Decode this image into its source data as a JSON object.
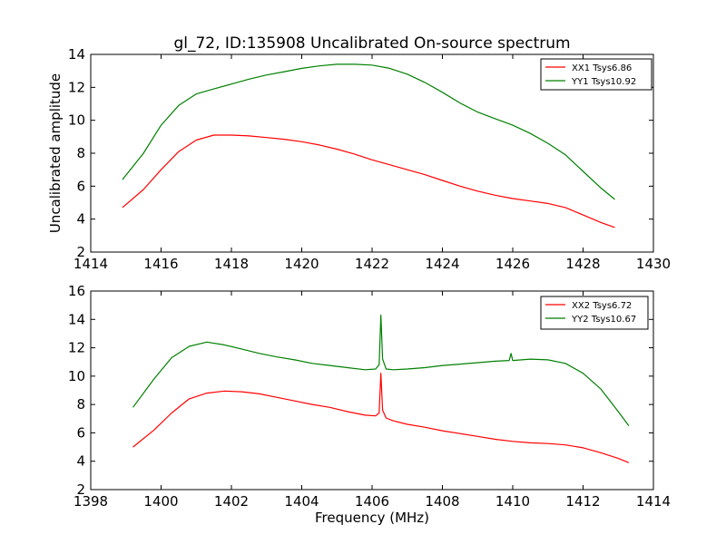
{
  "figure": {
    "title": "gl_72, ID:135908 Uncalibrated On-source spectrum",
    "ylabel": "Uncalibrated amplitude",
    "xlabel": "Frequency (MHz)"
  },
  "chart_data": [
    {
      "type": "line",
      "title": "gl_72, ID:135908 Uncalibrated On-source spectrum",
      "xlabel": "",
      "ylabel": "Uncalibrated amplitude",
      "xlim": [
        1414,
        1430
      ],
      "ylim": [
        2,
        14
      ],
      "xticks": [
        1414,
        1416,
        1418,
        1420,
        1422,
        1424,
        1426,
        1428,
        1430
      ],
      "yticks": [
        2,
        4,
        6,
        8,
        10,
        12,
        14
      ],
      "legend_position": "top-right",
      "grid": false,
      "series": [
        {
          "name": "XX1 Tsys6.86",
          "color": "#ff0000",
          "x": [
            1414.9,
            1415.5,
            1416.0,
            1416.5,
            1417.0,
            1417.5,
            1418.0,
            1418.5,
            1419.0,
            1419.5,
            1420.0,
            1420.5,
            1421.0,
            1421.5,
            1422.0,
            1422.5,
            1423.0,
            1423.5,
            1424.0,
            1424.5,
            1425.0,
            1425.5,
            1426.0,
            1426.5,
            1427.0,
            1427.5,
            1428.0,
            1428.5,
            1428.9
          ],
          "y": [
            4.7,
            5.8,
            7.0,
            8.1,
            8.8,
            9.1,
            9.1,
            9.05,
            8.95,
            8.85,
            8.7,
            8.5,
            8.25,
            7.95,
            7.6,
            7.3,
            7.0,
            6.7,
            6.35,
            6.0,
            5.7,
            5.45,
            5.25,
            5.1,
            4.95,
            4.7,
            4.25,
            3.8,
            3.5
          ]
        },
        {
          "name": "YY1 Tsys10.92",
          "color": "#008000",
          "x": [
            1414.9,
            1415.5,
            1416.0,
            1416.5,
            1417.0,
            1417.5,
            1418.0,
            1418.5,
            1419.0,
            1419.5,
            1420.0,
            1420.5,
            1421.0,
            1421.5,
            1422.0,
            1422.5,
            1423.0,
            1423.5,
            1424.0,
            1424.5,
            1425.0,
            1425.5,
            1426.0,
            1426.5,
            1427.0,
            1427.5,
            1428.0,
            1428.5,
            1428.9
          ],
          "y": [
            6.4,
            8.0,
            9.7,
            10.9,
            11.6,
            11.9,
            12.2,
            12.5,
            12.75,
            12.95,
            13.15,
            13.3,
            13.4,
            13.4,
            13.35,
            13.15,
            12.8,
            12.3,
            11.7,
            11.05,
            10.5,
            10.1,
            9.7,
            9.2,
            8.6,
            7.9,
            6.9,
            5.9,
            5.2
          ]
        }
      ]
    },
    {
      "type": "line",
      "title": "",
      "xlabel": "Frequency (MHz)",
      "ylabel": "",
      "xlim": [
        1398,
        1414
      ],
      "ylim": [
        2,
        16
      ],
      "xticks": [
        1398,
        1400,
        1402,
        1404,
        1406,
        1408,
        1410,
        1412,
        1414
      ],
      "yticks": [
        2,
        4,
        6,
        8,
        10,
        12,
        14,
        16
      ],
      "legend_position": "top-right",
      "grid": false,
      "series": [
        {
          "name": "XX2 Tsys6.72",
          "color": "#ff0000",
          "x": [
            1399.2,
            1399.8,
            1400.3,
            1400.8,
            1401.3,
            1401.8,
            1402.3,
            1402.8,
            1403.3,
            1403.8,
            1404.3,
            1404.8,
            1405.3,
            1405.8,
            1406.1,
            1406.2,
            1406.25,
            1406.3,
            1406.4,
            1406.6,
            1407.0,
            1407.5,
            1408.0,
            1408.5,
            1409.0,
            1409.5,
            1410.0,
            1410.5,
            1411.0,
            1411.5,
            1412.0,
            1412.5,
            1413.0,
            1413.3
          ],
          "y": [
            5.0,
            6.2,
            7.4,
            8.4,
            8.8,
            8.95,
            8.9,
            8.75,
            8.5,
            8.25,
            8.0,
            7.8,
            7.5,
            7.25,
            7.2,
            7.4,
            10.2,
            7.6,
            7.05,
            6.85,
            6.6,
            6.4,
            6.15,
            5.95,
            5.75,
            5.55,
            5.4,
            5.3,
            5.25,
            5.15,
            4.95,
            4.6,
            4.2,
            3.9
          ]
        },
        {
          "name": "YY2 Tsys10.67",
          "color": "#008000",
          "x": [
            1399.2,
            1399.8,
            1400.3,
            1400.8,
            1401.3,
            1401.8,
            1402.3,
            1402.8,
            1403.3,
            1403.8,
            1404.3,
            1404.8,
            1405.3,
            1405.8,
            1406.1,
            1406.2,
            1406.25,
            1406.3,
            1406.4,
            1406.6,
            1407.0,
            1407.5,
            1408.0,
            1408.5,
            1409.0,
            1409.5,
            1409.9,
            1409.95,
            1410.0,
            1410.5,
            1411.0,
            1411.5,
            1412.0,
            1412.5,
            1413.0,
            1413.3
          ],
          "y": [
            7.8,
            9.8,
            11.3,
            12.1,
            12.4,
            12.2,
            11.9,
            11.6,
            11.35,
            11.15,
            10.9,
            10.75,
            10.6,
            10.45,
            10.5,
            10.8,
            14.3,
            11.2,
            10.5,
            10.45,
            10.5,
            10.6,
            10.75,
            10.85,
            10.95,
            11.05,
            11.1,
            11.6,
            11.1,
            11.2,
            11.15,
            10.9,
            10.2,
            9.1,
            7.5,
            6.5
          ]
        }
      ]
    }
  ]
}
